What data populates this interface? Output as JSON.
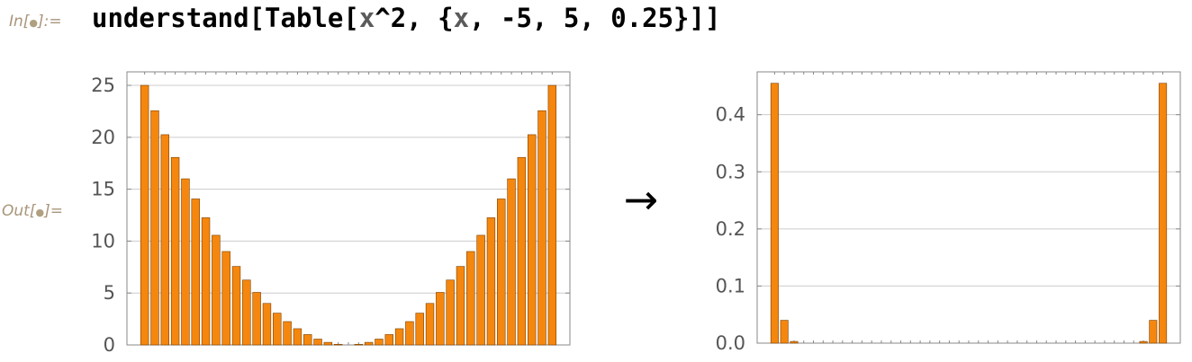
{
  "cell": {
    "in_label": "In[",
    "in_symbol": "●",
    "in_suffix": "]:=",
    "out_label": "Out[",
    "out_symbol": "●",
    "out_suffix": "]=",
    "input_parts": [
      {
        "text": "understand[Table[",
        "kind": "code"
      },
      {
        "text": "x",
        "kind": "var"
      },
      {
        "text": "^2, {",
        "kind": "code"
      },
      {
        "text": "x",
        "kind": "var"
      },
      {
        "text": ", -5, 5, 0.25}]]",
        "kind": "code"
      }
    ],
    "arrow": "→"
  },
  "colors": {
    "bar_fill": "#f5870e",
    "bar_stroke": "#7a3f00",
    "grid": "#cccccc",
    "frame": "#888888",
    "tick_text": "#555555"
  },
  "chart_data": [
    {
      "type": "bar",
      "title": "",
      "xlabel": "",
      "ylabel": "",
      "ylim": [
        0,
        26.3
      ],
      "yticks": [
        "0",
        "5",
        "10",
        "15",
        "20",
        "25"
      ],
      "ytick_values": [
        0,
        5,
        10,
        15,
        20,
        25
      ],
      "grid": true,
      "values": [
        25,
        22.5625,
        20.25,
        18.0625,
        16,
        14.0625,
        12.25,
        10.5625,
        9,
        7.5625,
        6.25,
        5.0625,
        4,
        3.0625,
        2.25,
        1.5625,
        1,
        0.5625,
        0.25,
        0.0625,
        0,
        0.0625,
        0.25,
        0.5625,
        1,
        1.5625,
        2.25,
        3.0625,
        4,
        5.0625,
        6.25,
        7.5625,
        9,
        10.5625,
        12.25,
        14.0625,
        16,
        18.0625,
        20.25,
        22.5625,
        25
      ]
    },
    {
      "type": "bar",
      "title": "",
      "xlabel": "",
      "ylabel": "",
      "ylim": [
        0,
        0.475
      ],
      "yticks": [
        "0.0",
        "0.1",
        "0.2",
        "0.3",
        "0.4"
      ],
      "ytick_values": [
        0,
        0.1,
        0.2,
        0.3,
        0.4
      ],
      "grid": true,
      "values": [
        0.455,
        0.04,
        0.003,
        0,
        0,
        0,
        0,
        0,
        0,
        0,
        0,
        0,
        0,
        0,
        0,
        0,
        0,
        0,
        0,
        0,
        0,
        0,
        0,
        0,
        0,
        0,
        0,
        0,
        0,
        0,
        0,
        0,
        0,
        0,
        0,
        0,
        0,
        0,
        0.003,
        0.04,
        0.455
      ]
    }
  ]
}
